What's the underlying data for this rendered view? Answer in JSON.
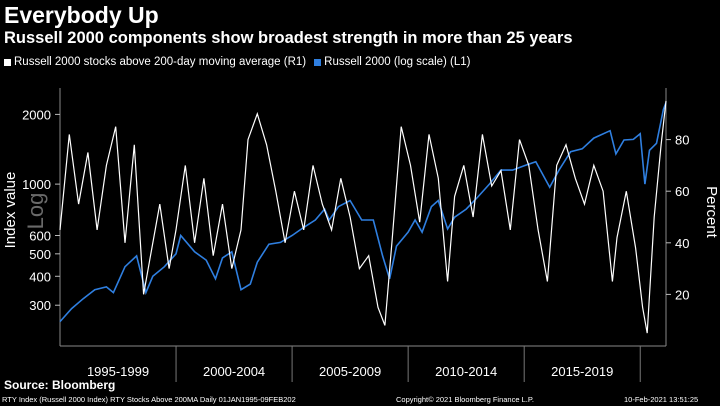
{
  "title": "Everybody Up",
  "subtitle": "Russell 2000 components show broadest strength in more than 25 years",
  "legend": {
    "series1_label": "Russell 2000 stocks above 200-day moving average (R1)",
    "series2_label": "Russell 2000 (log scale) (L1)"
  },
  "source": "Source: Bloomberg",
  "footer": {
    "left": "RTY Index (Russell 2000 Index) RTY Stocks Above 200MA  Daily 01JAN1995-09FEB202",
    "center": "Copyright© 2021 Bloomberg Finance L.P.",
    "right": "10-Feb-2021 13:51:25"
  },
  "colors": {
    "breadth": "#ffffff",
    "index": "#2f7fe0",
    "background": "#000000",
    "grid": "#555555"
  },
  "chart_data": {
    "type": "line",
    "x_period_labels": [
      "1995-1999",
      "2000-2004",
      "2005-2009",
      "2010-2014",
      "2015-2019"
    ],
    "x_range": [
      1995.0,
      2021.11
    ],
    "left_axis": {
      "label": "Index value",
      "watermark": "Log",
      "scale": "log",
      "range": [
        200,
        2600
      ],
      "ticks": [
        300,
        400,
        500,
        600,
        1000,
        2000
      ]
    },
    "right_axis": {
      "label": "Percent",
      "scale": "linear",
      "range": [
        0,
        100
      ],
      "ticks": [
        20,
        40,
        60,
        80
      ]
    },
    "series": [
      {
        "name": "Russell 2000 (log scale) (L1)",
        "axis": "left",
        "x": [
          1995.0,
          1995.5,
          1996.0,
          1996.5,
          1997.0,
          1997.3,
          1997.8,
          1998.3,
          1998.7,
          1999.0,
          1999.5,
          2000.0,
          2000.2,
          2000.8,
          2001.3,
          2001.7,
          2002.0,
          2002.4,
          2002.8,
          2003.2,
          2003.5,
          2004.0,
          2004.5,
          2005.0,
          2005.5,
          2006.0,
          2006.4,
          2006.6,
          2007.0,
          2007.5,
          2008.0,
          2008.5,
          2008.9,
          2009.2,
          2009.5,
          2010.0,
          2010.3,
          2010.6,
          2011.0,
          2011.3,
          2011.7,
          2012.0,
          2012.5,
          2013.0,
          2013.5,
          2014.0,
          2014.5,
          2015.0,
          2015.5,
          2016.1,
          2016.5,
          2017.0,
          2017.5,
          2018.0,
          2018.7,
          2018.95,
          2019.3,
          2019.7,
          2020.0,
          2020.2,
          2020.4,
          2020.7,
          2021.0,
          2021.11
        ],
        "values": [
          255,
          290,
          320,
          350,
          360,
          340,
          440,
          490,
          340,
          400,
          440,
          500,
          600,
          510,
          470,
          390,
          480,
          510,
          350,
          370,
          460,
          550,
          560,
          600,
          650,
          700,
          780,
          700,
          800,
          850,
          700,
          700,
          490,
          390,
          540,
          620,
          700,
          620,
          800,
          850,
          640,
          720,
          780,
          880,
          1000,
          1150,
          1150,
          1200,
          1250,
          970,
          1150,
          1380,
          1420,
          1580,
          1700,
          1350,
          1550,
          1560,
          1650,
          1000,
          1400,
          1500,
          2100,
          2250
        ]
      },
      {
        "name": "Russell 2000 stocks above 200-day moving average (R1)",
        "axis": "right",
        "x": [
          1995.0,
          1995.4,
          1995.8,
          1996.2,
          1996.6,
          1997.0,
          1997.4,
          1997.8,
          1998.2,
          1998.6,
          1998.9,
          1999.3,
          1999.7,
          2000.0,
          2000.4,
          2000.8,
          2001.2,
          2001.6,
          2002.0,
          2002.4,
          2002.8,
          2003.1,
          2003.5,
          2003.9,
          2004.3,
          2004.7,
          2005.1,
          2005.5,
          2005.9,
          2006.3,
          2006.7,
          2007.1,
          2007.5,
          2007.9,
          2008.3,
          2008.7,
          2009.0,
          2009.3,
          2009.7,
          2010.1,
          2010.5,
          2010.9,
          2011.3,
          2011.7,
          2012.0,
          2012.4,
          2012.8,
          2013.2,
          2013.6,
          2014.0,
          2014.4,
          2014.8,
          2015.2,
          2015.6,
          2016.0,
          2016.4,
          2016.8,
          2017.2,
          2017.6,
          2018.0,
          2018.4,
          2018.8,
          2019.0,
          2019.4,
          2019.8,
          2020.1,
          2020.3,
          2020.6,
          2020.9,
          2021.11
        ],
        "values": [
          45,
          82,
          55,
          75,
          45,
          70,
          85,
          40,
          78,
          20,
          35,
          55,
          30,
          45,
          70,
          40,
          65,
          35,
          55,
          30,
          45,
          80,
          90,
          78,
          60,
          40,
          60,
          45,
          70,
          55,
          45,
          65,
          50,
          30,
          35,
          15,
          8,
          40,
          85,
          70,
          48,
          82,
          65,
          25,
          58,
          70,
          50,
          82,
          62,
          68,
          45,
          80,
          70,
          45,
          25,
          70,
          78,
          65,
          55,
          70,
          60,
          25,
          42,
          60,
          38,
          15,
          5,
          50,
          78,
          95
        ]
      }
    ]
  }
}
